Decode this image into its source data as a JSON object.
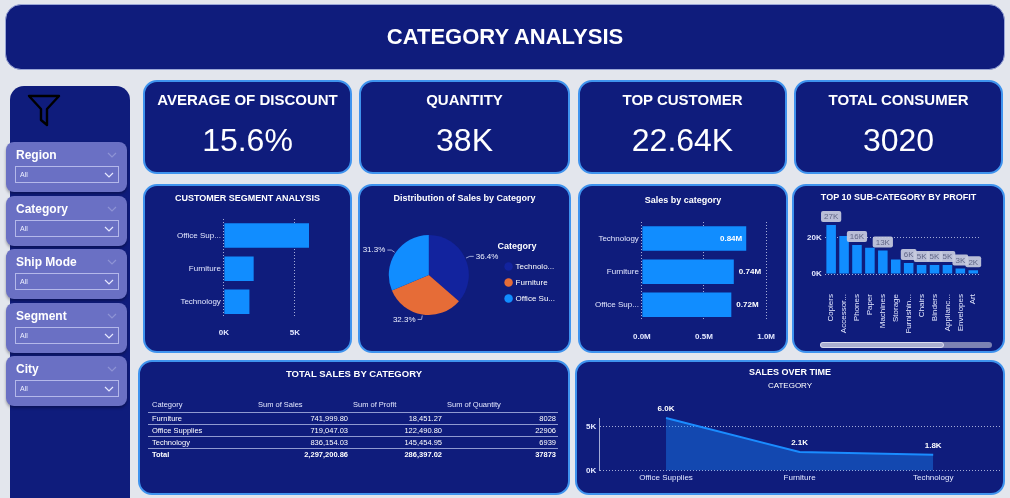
{
  "chart_data": [
    {
      "type": "other",
      "title": "CATEGORY ANALYSIS"
    },
    {
      "type": "other",
      "categories": [
        "Region",
        "Category",
        "Ship Mode",
        "Segment",
        "City"
      ],
      "annotations": [
        "All",
        "All",
        "All",
        "All",
        "All"
      ]
    },
    {
      "type": "other",
      "title": "AVERAGE OF DISCOUNT",
      "annotations": [
        "15.6%"
      ]
    },
    {
      "type": "other",
      "title": "QUANTITY",
      "annotations": [
        "38K"
      ]
    },
    {
      "type": "other",
      "title": "TOP CUSTOMER",
      "annotations": [
        "22.64K"
      ]
    },
    {
      "type": "other",
      "title": "TOTAL CONSUMER",
      "annotations": [
        "3020"
      ]
    },
    {
      "type": "bar",
      "orientation": "horizontal",
      "title": "CUSTOMER SEGMENT ANALYSIS",
      "categories": [
        "Office Sup...",
        "Furniture",
        "Technology"
      ],
      "values": [
        6000,
        2100,
        1800
      ],
      "color": "#118dff",
      "xlim": [
        0,
        6000
      ],
      "xticks": [
        {
          "value": 0,
          "label": "0K"
        },
        {
          "value": 5000,
          "label": "5K"
        }
      ],
      "grid": "x"
    },
    {
      "type": "pie",
      "title": "Distribution of Sales by Category",
      "categories": [
        "Technolo...",
        "Furniture",
        "Office Su..."
      ],
      "values": [
        36.4,
        32.3,
        31.3
      ],
      "colors": [
        "#12239e",
        "#e66c37",
        "#118dff"
      ],
      "value_labels": [
        "36.4%",
        "32.3%",
        "31.3%"
      ],
      "legend": "right",
      "legend_title": "Category"
    },
    {
      "type": "bar",
      "orientation": "horizontal",
      "title": "Sales by category",
      "categories": [
        "Technology",
        "Furniture",
        "Office Sup..."
      ],
      "values": [
        840000,
        740000,
        720000
      ],
      "color": "#118dff",
      "value_labels": [
        "0.84M",
        "0.74M",
        "0.72M"
      ],
      "xlim": [
        0,
        1000000
      ],
      "xticks": [
        {
          "value": 0,
          "label": "0.0M"
        },
        {
          "value": 500000,
          "label": "0.5M"
        },
        {
          "value": 1000000,
          "label": "1.0M"
        }
      ],
      "grid": "x"
    },
    {
      "type": "bar",
      "title": "TOP 10 SUB-CATEGORY BY PROFIT",
      "categories": [
        "Copiers",
        "Accessor...",
        "Phones",
        "Paper",
        "Machines",
        "Storage",
        "Furnishin...",
        "Chairs",
        "Binders",
        "Applianc...",
        "Envelopes",
        "Art"
      ],
      "values": [
        27000,
        21000,
        16000,
        14500,
        13000,
        8000,
        6000,
        5000,
        5000,
        5000,
        3000,
        2000
      ],
      "color": "#118dff",
      "value_labels": [
        "27K",
        null,
        "16K",
        null,
        "13K",
        null,
        "6K",
        "5K",
        "5K",
        "5K",
        "3K",
        "2K"
      ],
      "ylim": [
        0,
        27000
      ],
      "yticks": [
        {
          "value": 0,
          "label": "0K"
        },
        {
          "value": 20000,
          "label": "20K"
        }
      ],
      "grid": "y"
    },
    {
      "type": "other",
      "title": "TOTAL SALES BY CATEGORY",
      "xlabel": "Category",
      "categories": [
        "Furniture",
        "Office Supplies",
        "Technology",
        "Total"
      ],
      "data_labels": true,
      "series": [
        {
          "name": "Sum of Sales",
          "values": [
            741999.8,
            719047.03,
            836154.03,
            2297200.86
          ],
          "value_labels": [
            "741,999.80",
            "719,047.03",
            "836,154.03",
            "2,297,200.86"
          ]
        },
        {
          "name": "Sum of Profit",
          "values": [
            18451.27,
            122490.8,
            145454.95,
            286397.02
          ],
          "value_labels": [
            "18,451.27",
            "122,490.80",
            "145,454.95",
            "286,397.02"
          ]
        },
        {
          "name": "Sum of Quantity",
          "values": [
            8028,
            22906,
            6939,
            37873
          ]
        }
      ]
    },
    {
      "type": "area",
      "title": "SALES OVER TIME",
      "subtitle": "CATEGORY",
      "categories": [
        "Office Supplies",
        "Furniture",
        "Technology"
      ],
      "values": [
        6000,
        2100,
        1800
      ],
      "color": "#1a8cff",
      "value_labels": [
        "6.0K",
        "2.1K",
        "1.8K"
      ],
      "ylim": [
        0,
        6000
      ],
      "yticks": [
        {
          "value": 0,
          "label": "0K"
        },
        {
          "value": 5000,
          "label": "5K"
        }
      ],
      "grid": "y"
    }
  ]
}
